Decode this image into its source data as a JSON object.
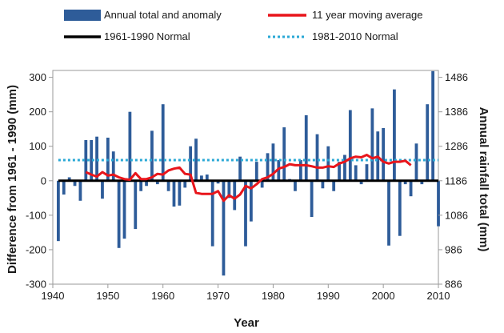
{
  "chart_data": {
    "type": "bar",
    "xlabel": "Year",
    "ylabel": "Difference from  1961 - 1990 (mm)",
    "y2label": "Annual rainfall total  (mm)",
    "xlim": [
      1940,
      2010
    ],
    "ylim": [
      -300,
      320
    ],
    "y2lim": [
      886,
      1506
    ],
    "x_ticks": [
      1940,
      1950,
      1960,
      1970,
      1980,
      1990,
      2000,
      2010
    ],
    "y_ticks": [
      -300,
      -200,
      -100,
      0,
      100,
      200,
      300
    ],
    "y2_ticks": [
      886,
      986,
      1086,
      1186,
      1286,
      1386,
      1486
    ],
    "grid": false,
    "legend_position": "top",
    "colors": {
      "bars": "#2e5c99",
      "moving_average": "#e8151b",
      "normal_1961_1990": "#000000",
      "normal_1981_2010": "#2aa8d6"
    },
    "series": [
      {
        "name": "Annual total and anomaly",
        "kind": "bar",
        "x": [
          1941,
          1942,
          1943,
          1944,
          1945,
          1946,
          1947,
          1948,
          1949,
          1950,
          1951,
          1952,
          1953,
          1954,
          1955,
          1956,
          1957,
          1958,
          1959,
          1960,
          1961,
          1962,
          1963,
          1964,
          1965,
          1966,
          1967,
          1968,
          1969,
          1970,
          1971,
          1972,
          1973,
          1974,
          1975,
          1976,
          1977,
          1978,
          1979,
          1980,
          1981,
          1982,
          1983,
          1984,
          1985,
          1986,
          1987,
          1988,
          1989,
          1990,
          1991,
          1992,
          1993,
          1994,
          1995,
          1996,
          1997,
          1998,
          1999,
          2000,
          2001,
          2002,
          2003,
          2004,
          2005,
          2006,
          2007,
          2008,
          2009,
          2010
        ],
        "values": [
          -175,
          -40,
          10,
          -15,
          -58,
          118,
          118,
          128,
          -52,
          125,
          85,
          -195,
          -168,
          200,
          -140,
          -30,
          -15,
          145,
          -10,
          222,
          -30,
          -75,
          -72,
          -20,
          100,
          122,
          15,
          18,
          -190,
          -8,
          -275,
          -50,
          -85,
          70,
          -190,
          -118,
          55,
          -20,
          80,
          108,
          60,
          155,
          5,
          -30,
          60,
          190,
          -105,
          135,
          -22,
          100,
          -30,
          55,
          75,
          205,
          45,
          -10,
          48,
          210,
          143,
          153,
          -188,
          265,
          -160,
          -10,
          -45,
          108,
          -10,
          222,
          318,
          -132
        ]
      },
      {
        "name": "11 year moving average",
        "kind": "line",
        "x": [
          1946,
          1947,
          1948,
          1949,
          1950,
          1951,
          1952,
          1953,
          1954,
          1955,
          1956,
          1957,
          1958,
          1959,
          1960,
          1961,
          1962,
          1963,
          1964,
          1965,
          1966,
          1967,
          1968,
          1969,
          1970,
          1971,
          1972,
          1973,
          1974,
          1975,
          1976,
          1977,
          1978,
          1979,
          1980,
          1981,
          1982,
          1983,
          1984,
          1985,
          1986,
          1987,
          1988,
          1989,
          1990,
          1991,
          1992,
          1993,
          1994,
          1995,
          1996,
          1997,
          1998,
          1999,
          2000,
          2001,
          2002,
          2003,
          2004,
          2005
        ],
        "values": [
          25,
          18,
          12,
          25,
          15,
          18,
          10,
          5,
          3,
          22,
          5,
          5,
          10,
          20,
          18,
          30,
          35,
          38,
          20,
          18,
          -35,
          -38,
          -38,
          -38,
          -30,
          -58,
          -42,
          -52,
          -40,
          -15,
          -22,
          -10,
          5,
          10,
          20,
          35,
          40,
          48,
          45,
          45,
          45,
          42,
          38,
          38,
          42,
          40,
          50,
          55,
          65,
          70,
          68,
          75,
          65,
          70,
          55,
          50,
          55,
          55,
          58,
          45
        ]
      },
      {
        "name": "1961-1990 Normal",
        "kind": "line",
        "value": 0
      },
      {
        "name": "1981-2010 Normal",
        "kind": "line",
        "value": 60
      }
    ]
  }
}
